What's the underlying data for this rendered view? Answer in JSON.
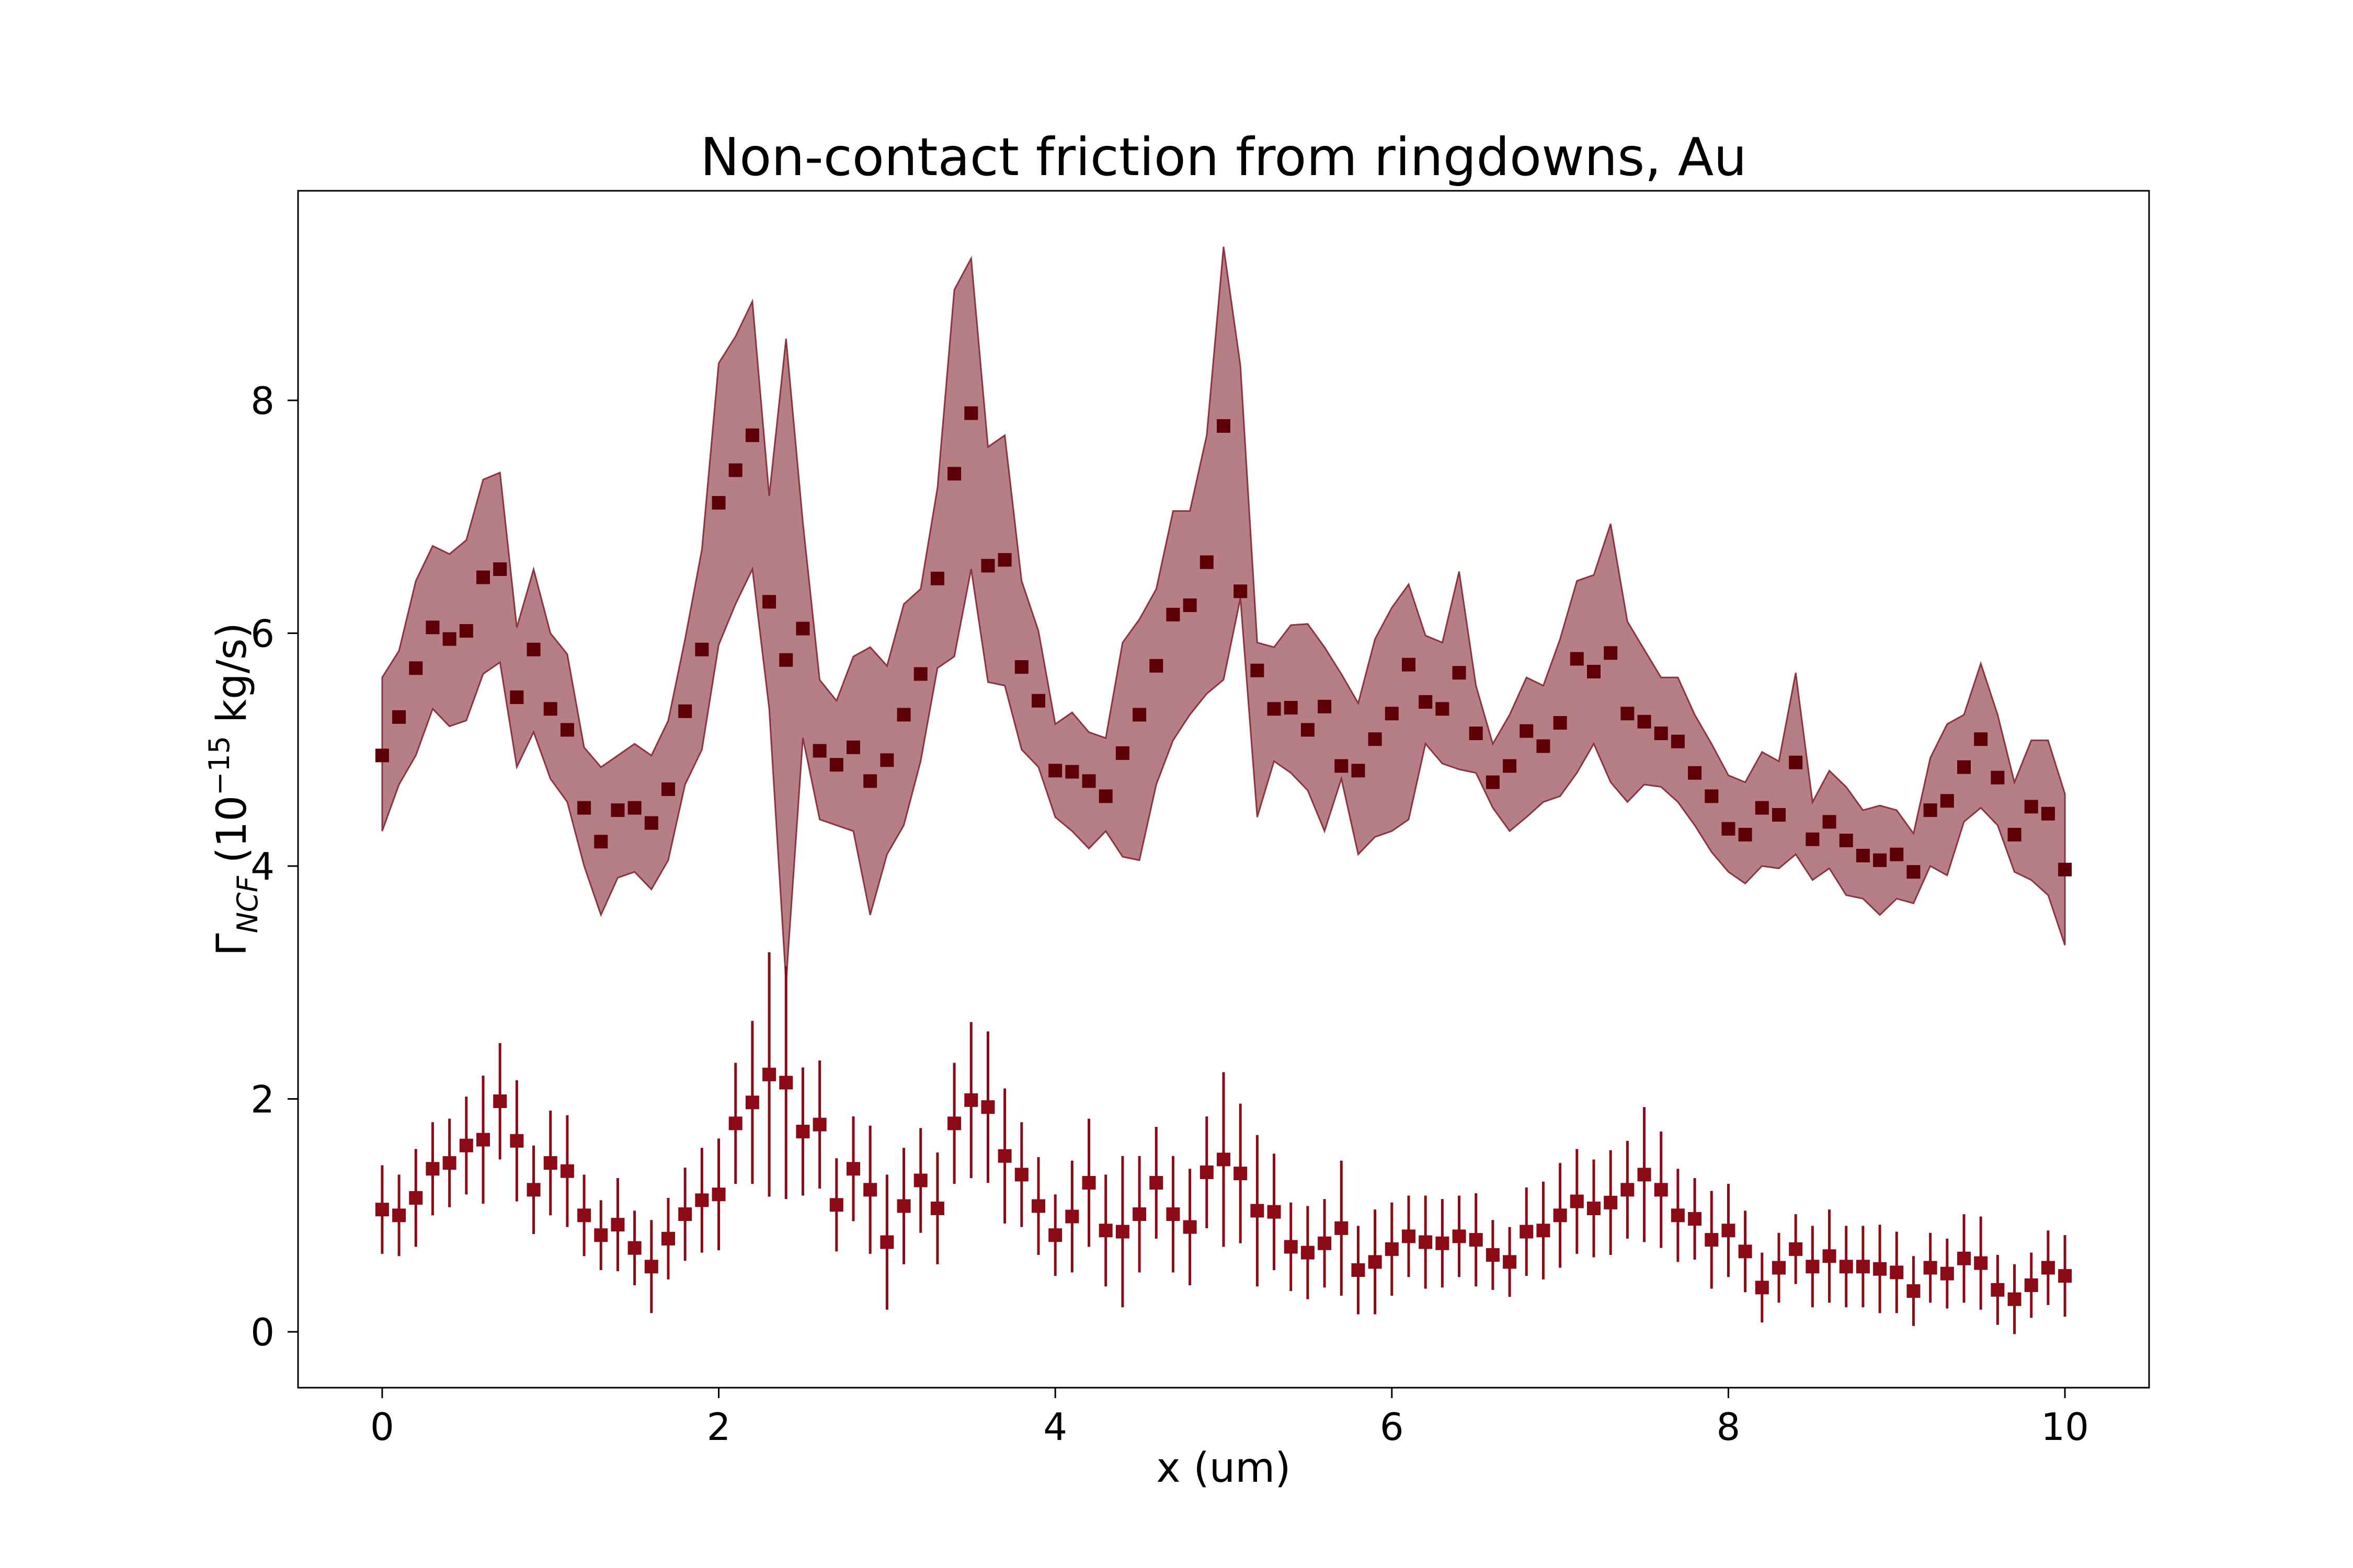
{
  "chart_data": {
    "type": "scatter",
    "title": "Non-contact friction from ringdowns, Au",
    "xlabel": "x (um)",
    "ylabel": "Γ_NCF (10^-15 kg/s)",
    "xlim": [
      -0.5,
      10.5
    ],
    "ylim": [
      -0.48,
      9.8
    ],
    "xticks": [
      0,
      2,
      4,
      6,
      8,
      10
    ],
    "yticks": [
      0,
      2,
      4,
      6,
      8
    ],
    "grid": false,
    "legend": "none",
    "series": [
      {
        "marker": "square",
        "color": "#5e0008",
        "band_color": "#7a1420",
        "x": [
          0,
          0.1,
          0.2,
          0.3,
          0.4,
          0.5,
          0.6,
          0.7,
          0.8,
          0.9,
          1.0,
          1.1,
          1.2,
          1.3,
          1.4,
          1.5,
          1.6,
          1.7,
          1.8,
          1.9,
          2.0,
          2.1,
          2.2,
          2.3,
          2.4,
          2.5,
          2.6,
          2.7,
          2.8,
          2.9,
          3.0,
          3.1,
          3.2,
          3.3,
          3.4,
          3.5,
          3.6,
          3.7,
          3.8,
          3.9,
          4.0,
          4.1,
          4.2,
          4.3,
          4.4,
          4.5,
          4.6,
          4.7,
          4.8,
          4.9,
          5.0,
          5.1,
          5.2,
          5.3,
          5.4,
          5.5,
          5.6,
          5.7,
          5.8,
          5.9,
          6.0,
          6.1,
          6.2,
          6.3,
          6.4,
          6.5,
          6.6,
          6.7,
          6.8,
          6.9,
          7.0,
          7.1,
          7.2,
          7.3,
          7.4,
          7.5,
          7.6,
          7.7,
          7.8,
          7.9,
          8.0,
          8.1,
          8.2,
          8.3,
          8.4,
          8.5,
          8.6,
          8.7,
          8.8,
          8.9,
          9.0,
          9.1,
          9.2,
          9.3,
          9.4,
          9.5,
          9.6,
          9.7,
          9.8,
          9.9,
          10.0
        ],
        "y": [
          4.95,
          5.28,
          5.7,
          6.05,
          5.95,
          6.02,
          6.48,
          6.55,
          5.45,
          5.86,
          5.35,
          5.17,
          4.5,
          4.21,
          4.48,
          4.5,
          4.37,
          4.66,
          5.33,
          5.86,
          7.12,
          7.4,
          7.7,
          6.27,
          5.77,
          6.04,
          4.99,
          4.87,
          5.02,
          4.73,
          4.91,
          5.3,
          5.65,
          6.47,
          7.37,
          7.89,
          6.58,
          6.63,
          5.71,
          5.42,
          4.82,
          4.81,
          4.73,
          4.6,
          4.97,
          5.3,
          5.72,
          6.16,
          6.24,
          6.61,
          7.78,
          6.36,
          5.68,
          5.35,
          5.36,
          5.17,
          5.37,
          4.86,
          4.82,
          5.09,
          5.31,
          5.73,
          5.41,
          5.35,
          5.66,
          5.14,
          4.72,
          4.86,
          5.16,
          5.03,
          5.23,
          5.78,
          5.67,
          5.83,
          5.31,
          5.24,
          5.14,
          5.07,
          4.8,
          4.6,
          4.32,
          4.27,
          4.5,
          4.44,
          4.89,
          4.23,
          4.38,
          4.22,
          4.09,
          4.05,
          4.1,
          3.95,
          4.48,
          4.56,
          4.85,
          5.09,
          4.76,
          4.27,
          4.51,
          4.45,
          3.97
        ],
        "band_lower": [
          4.3,
          4.7,
          4.95,
          5.35,
          5.2,
          5.25,
          5.65,
          5.75,
          4.85,
          5.15,
          4.75,
          4.55,
          4.0,
          3.58,
          3.9,
          3.95,
          3.8,
          4.05,
          4.7,
          5.0,
          5.9,
          6.25,
          6.55,
          5.35,
          3.0,
          5.1,
          4.4,
          4.35,
          4.3,
          3.58,
          4.1,
          4.35,
          4.9,
          5.7,
          5.8,
          6.55,
          5.58,
          5.55,
          5.0,
          4.85,
          4.42,
          4.3,
          4.15,
          4.3,
          4.08,
          4.05,
          4.7,
          5.08,
          5.3,
          5.48,
          5.6,
          6.3,
          4.42,
          4.9,
          4.8,
          4.65,
          4.3,
          4.75,
          4.1,
          4.25,
          4.3,
          4.4,
          5.05,
          4.88,
          4.83,
          4.8,
          4.5,
          4.3,
          4.42,
          4.55,
          4.6,
          4.8,
          5.05,
          4.72,
          4.55,
          4.7,
          4.68,
          4.55,
          4.35,
          4.12,
          3.95,
          3.85,
          4.0,
          3.98,
          4.1,
          3.88,
          3.98,
          3.75,
          3.72,
          3.58,
          3.72,
          3.68,
          4.0,
          3.92,
          4.38,
          4.5,
          4.35,
          3.95,
          3.88,
          3.75,
          3.32
        ],
        "band_upper": [
          5.62,
          5.85,
          6.45,
          6.75,
          6.68,
          6.8,
          7.32,
          7.38,
          6.05,
          6.55,
          6.0,
          5.82,
          5.02,
          4.85,
          4.95,
          5.05,
          4.95,
          5.25,
          5.95,
          6.72,
          8.32,
          8.55,
          8.85,
          7.18,
          8.53,
          6.95,
          5.6,
          5.42,
          5.8,
          5.88,
          5.72,
          6.25,
          6.38,
          7.25,
          8.95,
          9.22,
          7.6,
          7.7,
          6.45,
          6.02,
          5.22,
          5.32,
          5.15,
          5.1,
          5.92,
          6.12,
          6.38,
          7.05,
          7.05,
          7.7,
          9.32,
          8.3,
          5.92,
          5.88,
          6.07,
          6.08,
          5.88,
          5.65,
          5.4,
          5.95,
          6.22,
          6.42,
          5.98,
          5.92,
          6.53,
          5.55,
          5.05,
          5.3,
          5.62,
          5.55,
          5.95,
          6.45,
          6.5,
          6.94,
          6.1,
          5.86,
          5.62,
          5.62,
          5.3,
          5.05,
          4.78,
          4.72,
          4.98,
          4.9,
          5.66,
          4.55,
          4.82,
          4.68,
          4.48,
          4.52,
          4.48,
          4.28,
          4.93,
          5.22,
          5.3,
          5.74,
          5.3,
          4.72,
          5.08,
          5.08,
          4.62
        ]
      },
      {
        "marker": "square",
        "color": "#8b0a16",
        "x": [
          0,
          0.1,
          0.2,
          0.3,
          0.4,
          0.5,
          0.6,
          0.7,
          0.8,
          0.9,
          1.0,
          1.1,
          1.2,
          1.3,
          1.4,
          1.5,
          1.6,
          1.7,
          1.8,
          1.9,
          2.0,
          2.1,
          2.2,
          2.3,
          2.4,
          2.5,
          2.6,
          2.7,
          2.8,
          2.9,
          3.0,
          3.1,
          3.2,
          3.3,
          3.4,
          3.5,
          3.6,
          3.7,
          3.8,
          3.9,
          4.0,
          4.1,
          4.2,
          4.3,
          4.4,
          4.5,
          4.6,
          4.7,
          4.8,
          4.9,
          5.0,
          5.1,
          5.2,
          5.3,
          5.4,
          5.5,
          5.6,
          5.7,
          5.8,
          5.9,
          6.0,
          6.1,
          6.2,
          6.3,
          6.4,
          6.5,
          6.6,
          6.7,
          6.8,
          6.9,
          7.0,
          7.1,
          7.2,
          7.3,
          7.4,
          7.5,
          7.6,
          7.7,
          7.8,
          7.9,
          8.0,
          8.1,
          8.2,
          8.3,
          8.4,
          8.5,
          8.6,
          8.7,
          8.8,
          8.9,
          9.0,
          9.1,
          9.2,
          9.3,
          9.4,
          9.5,
          9.6,
          9.7,
          9.8,
          9.9,
          10.0
        ],
        "y": [
          1.05,
          1.0,
          1.15,
          1.4,
          1.45,
          1.6,
          1.65,
          1.98,
          1.64,
          1.22,
          1.45,
          1.38,
          1.0,
          0.83,
          0.92,
          0.72,
          0.56,
          0.8,
          1.01,
          1.13,
          1.18,
          1.79,
          1.97,
          2.21,
          2.14,
          1.72,
          1.78,
          1.09,
          1.4,
          1.22,
          0.77,
          1.08,
          1.3,
          1.06,
          1.79,
          1.99,
          1.93,
          1.51,
          1.35,
          1.08,
          0.83,
          0.99,
          1.28,
          0.87,
          0.86,
          1.01,
          1.28,
          1.01,
          0.9,
          1.37,
          1.48,
          1.36,
          1.04,
          1.03,
          0.73,
          0.68,
          0.76,
          0.89,
          0.53,
          0.6,
          0.71,
          0.82,
          0.77,
          0.76,
          0.82,
          0.79,
          0.66,
          0.6,
          0.86,
          0.87,
          1.0,
          1.12,
          1.06,
          1.11,
          1.22,
          1.35,
          1.22,
          1.0,
          0.97,
          0.79,
          0.87,
          0.69,
          0.38,
          0.55,
          0.71,
          0.56,
          0.65,
          0.56,
          0.56,
          0.54,
          0.51,
          0.35,
          0.55,
          0.5,
          0.63,
          0.59,
          0.36,
          0.28,
          0.4,
          0.55,
          0.48
        ],
        "err": [
          0.38,
          0.35,
          0.42,
          0.4,
          0.38,
          0.42,
          0.55,
          0.5,
          0.52,
          0.38,
          0.45,
          0.48,
          0.35,
          0.3,
          0.4,
          0.32,
          0.4,
          0.35,
          0.4,
          0.45,
          0.48,
          0.52,
          0.7,
          1.05,
          1.0,
          0.55,
          0.55,
          0.4,
          0.45,
          0.55,
          0.58,
          0.5,
          0.45,
          0.48,
          0.52,
          0.67,
          0.65,
          0.58,
          0.45,
          0.42,
          0.35,
          0.48,
          0.55,
          0.48,
          0.65,
          0.5,
          0.48,
          0.5,
          0.5,
          0.48,
          0.75,
          0.6,
          0.65,
          0.5,
          0.38,
          0.4,
          0.38,
          0.58,
          0.38,
          0.45,
          0.4,
          0.35,
          0.4,
          0.38,
          0.35,
          0.4,
          0.3,
          0.3,
          0.38,
          0.42,
          0.45,
          0.45,
          0.42,
          0.45,
          0.42,
          0.58,
          0.5,
          0.4,
          0.35,
          0.42,
          0.4,
          0.35,
          0.3,
          0.3,
          0.3,
          0.35,
          0.4,
          0.35,
          0.35,
          0.38,
          0.35,
          0.3,
          0.3,
          0.3,
          0.38,
          0.4,
          0.3,
          0.3,
          0.28,
          0.32,
          0.35
        ]
      }
    ]
  }
}
